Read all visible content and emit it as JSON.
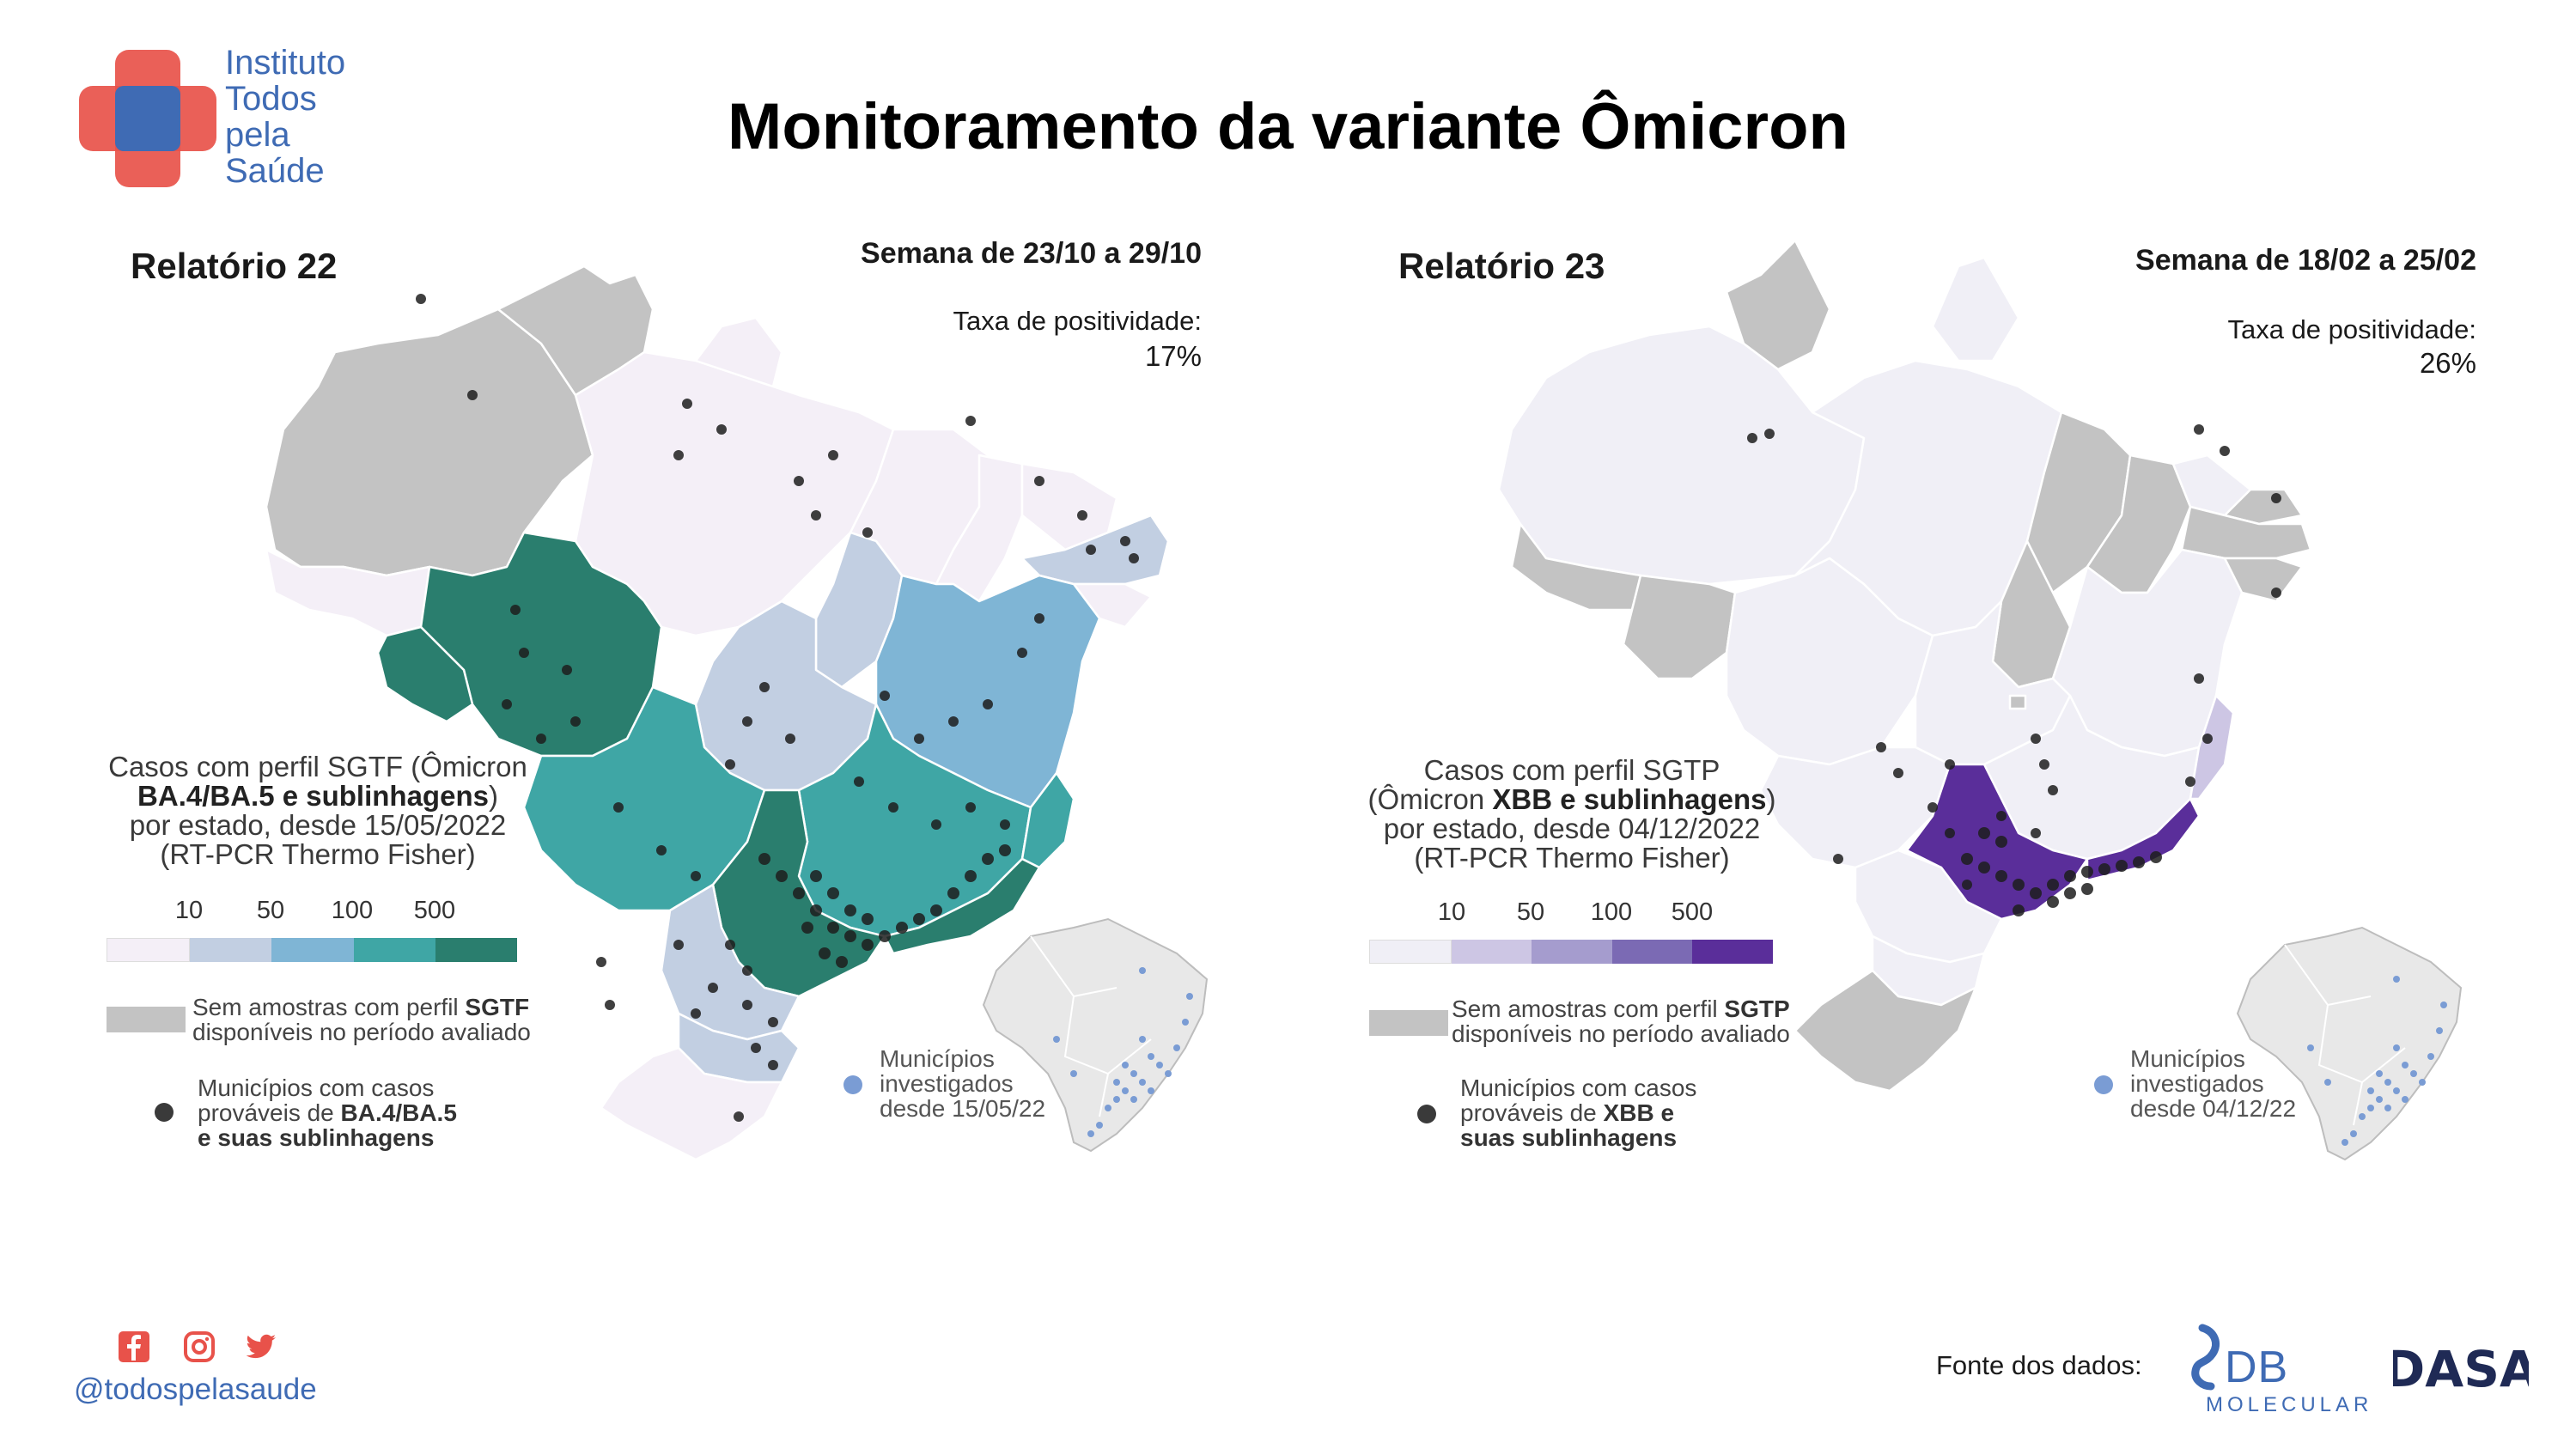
{
  "header": {
    "logo_lines": [
      "Instituto",
      "Todos",
      "pela",
      "Saúde"
    ],
    "title": "Monitoramento da variante Ômicron"
  },
  "colors": {
    "brand_red": "#e8524a",
    "brand_blue": "#3f6bb4",
    "no_sample_gray": "#c3c3c3",
    "case_dot": "#1e1e1e",
    "investigated_dot": "#7a9cd4"
  },
  "panels": [
    {
      "report": "Relatório 22",
      "week": "Semana de 23/10 a 29/10",
      "positivity_label": "Taxa de positividade:",
      "positivity_value": "17%",
      "legend": {
        "line1": "Casos com perfil SGTF (Ômicron",
        "line2_bold": "BA.4/BA.5 e sublinhagens",
        "line2_tail": ")",
        "line3": "por estado, desde 15/05/2022",
        "line4": "(RT-PCR Thermo Fisher)",
        "ticks": [
          "10",
          "50",
          "100",
          "500"
        ],
        "scale_colors": [
          "#f4eff7",
          "#c2cfe2",
          "#7fb5d5",
          "#3fa6a5",
          "#2a7e6e"
        ]
      },
      "no_sample": {
        "line1_pre": "Sem amostras com perfil ",
        "line1_bold": "SGTF",
        "line2": "disponíveis no período avaliado"
      },
      "cases_note": {
        "line1": "Municípios com casos",
        "line2_pre": "prováveis de ",
        "line2_bold": "BA.4/BA.5",
        "line3_bold": "e suas sublinhagens"
      },
      "inset": {
        "line1": "Municípios",
        "line2": "investigados",
        "line3": "desde 15/05/22"
      }
    },
    {
      "report": "Relatório 23",
      "week": "Semana de 18/02 a 25/02",
      "positivity_label": "Taxa de positividade:",
      "positivity_value": "26%",
      "legend": {
        "line1": "Casos com perfil SGTP",
        "line2_pre": "(Ômicron ",
        "line2_bold": "XBB e sublinhagens",
        "line2_tail": ")",
        "line3": "por estado, desde 04/12/2022",
        "line4": "(RT-PCR Thermo Fisher)",
        "ticks": [
          "10",
          "50",
          "100",
          "500"
        ],
        "scale_colors": [
          "#f0eff6",
          "#cdc6e4",
          "#a59cce",
          "#7b6ab4",
          "#5a2e9a"
        ]
      },
      "no_sample": {
        "line1_pre": "Sem amostras com perfil ",
        "line1_bold": "SGTP",
        "line2": "disponíveis no período avaliado"
      },
      "cases_note": {
        "line1": "Municípios com casos",
        "line2_pre": "prováveis de ",
        "line2_bold": "XBB e",
        "line3_bold": "suas sublinhagens"
      },
      "inset": {
        "line1": "Municípios",
        "line2": "investigados",
        "line3": "desde 04/12/22"
      }
    }
  ],
  "footer": {
    "social_icons": [
      "facebook-icon",
      "instagram-icon",
      "twitter-icon"
    ],
    "handle": "@todospelasaude",
    "source_label": "Fonte dos dados:",
    "logo_db": "DB",
    "logo_molecular": "MOLECULAR",
    "logo_dasa": "DASA"
  }
}
